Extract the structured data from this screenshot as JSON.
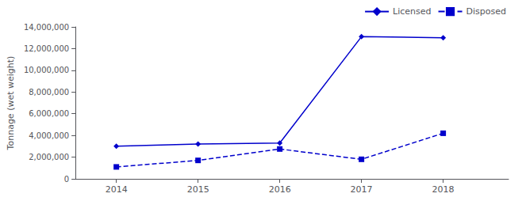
{
  "chart_data": {
    "type": "line",
    "ylabel": "Tonnage (wet weight)",
    "x": [
      2014,
      2015,
      2016,
      2017,
      2018
    ],
    "series": [
      {
        "name": "Licensed",
        "color": "#0000CC",
        "marker": "diamond",
        "line_style": "solid",
        "values": [
          3000000,
          3200000,
          3300000,
          13100000,
          13000000
        ]
      },
      {
        "name": "Disposed",
        "color": "#0000CC",
        "marker": "square",
        "line_style": "dashed",
        "values": [
          1100000,
          1700000,
          2750000,
          1800000,
          4200000
        ]
      }
    ],
    "xlim": [
      2013.5,
      2018.8
    ],
    "xticks": [
      2014,
      2015,
      2016,
      2017,
      2018
    ],
    "ylim": [
      0,
      14000000
    ],
    "yticks": [
      0,
      {
        "value": 2000000,
        "label": "2,000,000"
      },
      {
        "value": 4000000,
        "label": "4,000,000"
      },
      {
        "value": 6000000,
        "label": "6,000,000"
      },
      {
        "value": 8000000,
        "label": "8,000,000"
      },
      {
        "value": 10000000,
        "label": "10,000,000"
      },
      {
        "value": 12000000,
        "label": "12,000,000"
      },
      {
        "value": 14000000,
        "label": "14,000,000"
      }
    ],
    "grid": false,
    "legend": "upper right"
  }
}
